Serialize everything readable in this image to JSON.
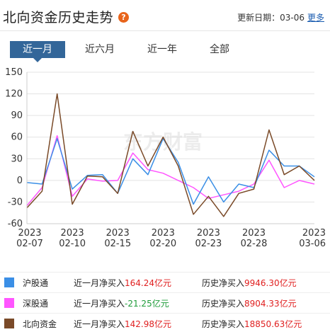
{
  "header": {
    "title": "北向资金历史走势",
    "help_glyph": "?",
    "update_label": "更新日期：",
    "update_date": "03-06",
    "more_label": "更多"
  },
  "tabs": [
    {
      "label": "近一月",
      "active": true
    },
    {
      "label": "近六月",
      "active": false
    },
    {
      "label": "近一年",
      "active": false
    },
    {
      "label": "全部",
      "active": false
    }
  ],
  "watermark": "东方财富",
  "chart_data": {
    "type": "line",
    "ylim": [
      -60,
      150
    ],
    "yticks": [
      150,
      120,
      90,
      60,
      30,
      0,
      -30,
      -60
    ],
    "xticks": [
      {
        "year": "2023",
        "date": "02-07",
        "i": 0
      },
      {
        "year": "2023",
        "date": "02-10",
        "i": 3
      },
      {
        "year": "2023",
        "date": "02-15",
        "i": 6
      },
      {
        "year": "2023",
        "date": "02-20",
        "i": 9
      },
      {
        "year": "2023",
        "date": "02-23",
        "i": 12
      },
      {
        "year": "2023",
        "date": "02-28",
        "i": 15
      },
      {
        "year": "2023",
        "date": "03-06",
        "i": 19
      }
    ],
    "n_points": 20,
    "series": [
      {
        "name": "沪股通",
        "color": "#3b8fe6",
        "values": [
          -3,
          -5,
          58,
          -12,
          7,
          8,
          -18,
          30,
          8,
          58,
          25,
          -33,
          5,
          -30,
          -5,
          -10,
          42,
          20,
          20,
          5
        ]
      },
      {
        "name": "深股通",
        "color": "#ff55ff",
        "values": [
          -35,
          -10,
          62,
          -22,
          2,
          -1,
          0,
          38,
          15,
          10,
          0,
          -10,
          -25,
          -20,
          -15,
          -5,
          28,
          -10,
          0,
          -5
        ]
      },
      {
        "name": "北向资金",
        "color": "#7a4a28",
        "values": [
          -38,
          -15,
          120,
          -33,
          6,
          5,
          -18,
          68,
          20,
          60,
          20,
          -47,
          -22,
          -50,
          -18,
          -12,
          70,
          8,
          20,
          0
        ]
      }
    ]
  },
  "legend": [
    {
      "name": "沪股通",
      "color": "#3b8fe6",
      "month_label": "近一月净买入",
      "month_value": "164.24亿元",
      "month_negative": false,
      "hist_label": "历史净买入",
      "hist_value": "9946.30亿元"
    },
    {
      "name": "深股通",
      "color": "#ff55ff",
      "month_label": "近一月净买入",
      "month_value": "-21.25亿元",
      "month_negative": true,
      "hist_label": "历史净买入",
      "hist_value": "8904.33亿元"
    },
    {
      "name": "北向资金",
      "color": "#7a4a28",
      "month_label": "近一月净买入",
      "month_value": "142.98亿元",
      "month_negative": false,
      "hist_label": "历史净买入",
      "hist_value": "18850.63亿元"
    }
  ]
}
